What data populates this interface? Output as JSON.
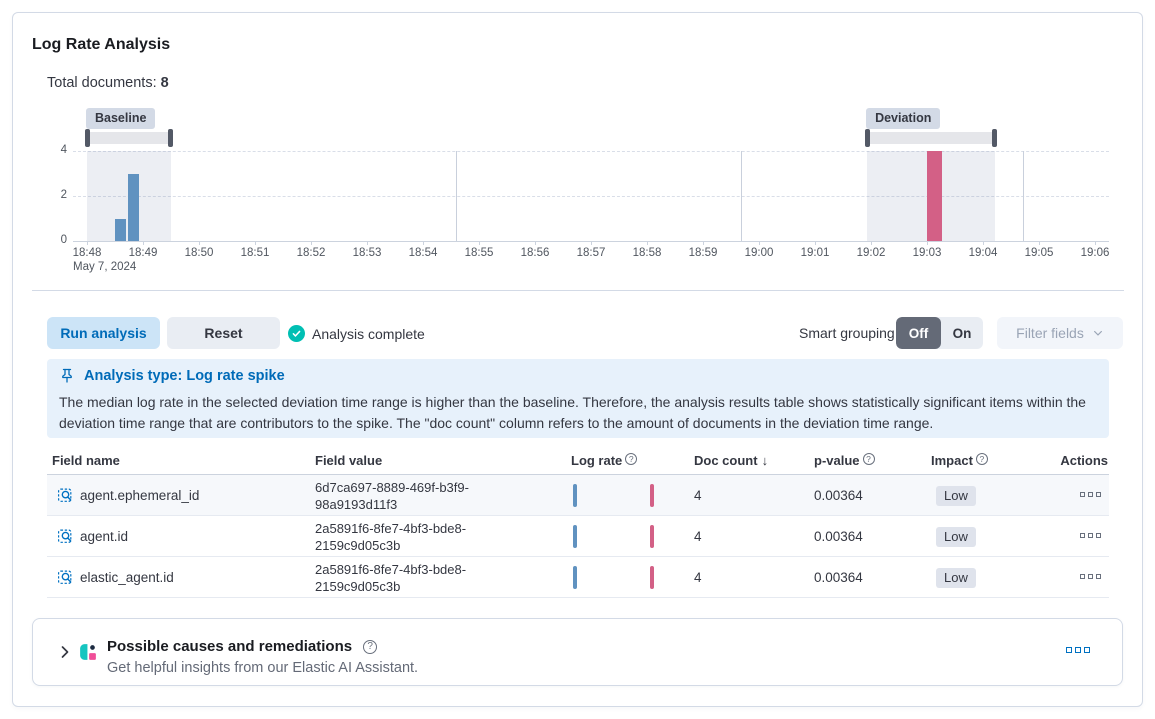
{
  "header": {
    "title": "Log Rate Analysis",
    "total_documents_label": "Total documents:",
    "total_documents_value": "8"
  },
  "chart_data": {
    "type": "bar",
    "title": "Document count histogram with baseline and deviation time ranges",
    "x_ticks": [
      "18:48",
      "18:49",
      "18:50",
      "18:51",
      "18:52",
      "18:53",
      "18:54",
      "18:55",
      "18:56",
      "18:57",
      "18:58",
      "18:59",
      "19:00",
      "19:01",
      "19:02",
      "19:03",
      "19:04",
      "19:05",
      "19:06"
    ],
    "x_date_label": "May 7, 2024",
    "y_ticks": [
      4,
      2,
      0
    ],
    "ylim": [
      0,
      4
    ],
    "grid": true,
    "baseline": {
      "label": "Baseline",
      "window_minutes": [
        0,
        1.5
      ],
      "bars": [
        {
          "minute_offset": 0.5,
          "value": 1
        },
        {
          "minute_offset": 0.73,
          "value": 3
        }
      ]
    },
    "deviation": {
      "label": "Deviation",
      "window_minutes": [
        13.93,
        16.21
      ],
      "bars": [
        {
          "minute_offset": 15.0,
          "value": 4
        }
      ]
    },
    "colors": {
      "baseline_bar": "#6092C0",
      "deviation_bar": "#D36086",
      "window_fill": "rgba(105,122,166,0.13)"
    }
  },
  "toolbar": {
    "run_button": "Run analysis",
    "reset_button": "Reset",
    "status_text": "Analysis complete",
    "smart_grouping_label": "Smart grouping",
    "toggle_off": "Off",
    "toggle_on": "On",
    "filter_fields_button": "Filter fields"
  },
  "callout": {
    "title": "Analysis type: Log rate spike",
    "body": "The median log rate in the selected deviation time range is higher than the baseline. Therefore, the analysis results table shows statistically significant items within the deviation time range that are contributors to the spike. The \"doc count\" column refers to the amount of documents in the deviation time range."
  },
  "table": {
    "columns": {
      "field_name": "Field name",
      "field_value": "Field value",
      "log_rate": "Log rate",
      "doc_count": "Doc count",
      "p_value": "p-value",
      "impact": "Impact",
      "actions": "Actions"
    },
    "sort": {
      "column": "Doc count",
      "direction": "desc"
    },
    "rows": [
      {
        "field_name": "agent.ephemeral_id",
        "field_value": "6d7ca697-8889-469f-b3f9-98a9193d11f3",
        "doc_count": "4",
        "p_value": "0.00364",
        "impact": "Low"
      },
      {
        "field_name": "agent.id",
        "field_value": "2a5891f6-8fe7-4bf3-bde8-2159c9d05c3b",
        "doc_count": "4",
        "p_value": "0.00364",
        "impact": "Low"
      },
      {
        "field_name": "elastic_agent.id",
        "field_value": "2a5891f6-8fe7-4bf3-bde8-2159c9d05c3b",
        "doc_count": "4",
        "p_value": "0.00364",
        "impact": "Low"
      }
    ]
  },
  "ai_panel": {
    "title": "Possible causes and remediations",
    "subtitle": "Get helpful insights from our Elastic AI Assistant."
  }
}
